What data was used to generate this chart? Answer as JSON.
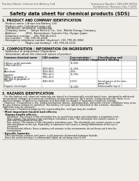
{
  "bg_color": "#f0ede8",
  "title": "Safety data sheet for chemical products (SDS)",
  "header_left": "Product Name: Lithium Ion Battery Cell",
  "header_right_line1": "Substance Number: SDS-LIBT-00010",
  "header_right_line2": "Established / Revision: Dec.7.2016",
  "section1_title": "1. PRODUCT AND COMPANY IDENTIFICATION",
  "section1_lines": [
    "- Product name: Lithium Ion Battery Cell",
    "- Product code: Cylindrical-type cell",
    "  (UR18650U, UR18650Z, UR18650A)",
    "- Company name:     Sanyo Electric Co., Ltd., Mobile Energy Company",
    "- Address:          2001, Kamionkuze, Sumoto-City, Hyogo, Japan",
    "- Telephone number:   +81-799-26-4111",
    "- Fax number:   +81-799-26-4128",
    "- Emergency telephone number (daytime): +81-799-26-3862",
    "                         (Night and holiday): +81-799-26-4131"
  ],
  "section2_title": "2. COMPOSITION / INFORMATION ON INGREDIENTS",
  "section2_sub1": "- Substance or preparation: Preparation",
  "section2_sub2": "- Information about the chemical nature of product:",
  "table_headers": [
    "Common chemical name",
    "CAS number",
    "Concentration /\nConcentration range",
    "Classification and\nhazard labeling"
  ],
  "table_rows": [
    [
      "Lithium oxide tantalate\n(LiMn(CoNiO2))",
      "",
      "30-60%",
      ""
    ],
    [
      "Iron",
      "7439-89-6",
      "15-25%",
      "-"
    ],
    [
      "Aluminum",
      "7429-90-5",
      "2-6%",
      "-"
    ],
    [
      "Graphite\n(Most is graphite-1)\n(All film is graphite-2)",
      "7782-42-5\n7782-42-5",
      "10-25%",
      "-"
    ],
    [
      "Copper",
      "7440-50-8",
      "5-15%",
      "Sensitization of the skin\ngroup No.2"
    ],
    [
      "Organic electrolyte",
      "-",
      "10-20%",
      "Inflammable liquid"
    ]
  ],
  "section3_title": "3. HAZARDS IDENTIFICATION",
  "section3_para": [
    "  For this battery cell, chemical materials are stored in a hermetically-sealed metal case, designed to withstand",
    "temperature changes and pressure-conditions during normal use. As a result, during normal use, there is no",
    "physical danger of ignition or explosion and therefore no danger of hazardous materials leakage.",
    "  However, if exposed to a fire, added mechanical shocks, decomposition, abnormal electric conditions may occur.",
    "By gas release contact be operated. The battery cell case will be breached at the extreme, hazardous",
    "materials may be released.",
    "  Moreover, if heated strongly by the surrounding fire, acid gas may be emitted."
  ],
  "section3_most": "- Most important hazard and effects:",
  "section3_human_title": "  Human health effects:",
  "section3_human_lines": [
    "    Inhalation: The release of the electrolyte has an anesthesia action and stimulates a respiratory tract.",
    "    Skin contact: The release of the electrolyte stimulates a skin. The electrolyte skin contact causes a",
    "    sore and stimulation on the skin.",
    "    Eye contact: The release of the electrolyte stimulates eyes. The electrolyte eye contact causes a sore",
    "    and stimulation on the eye. Especially, a substance that causes a strong inflammation of the eye is",
    "    contained.",
    "    Environmental effects: Since a battery cell remains in the environment, do not throw out it into the",
    "    environment."
  ],
  "section3_specific_title": "- Specific hazards:",
  "section3_specific_lines": [
    "  If the electrolyte contacts with water, it will generate detrimental hydrogen fluoride.",
    "  Since the used electrolyte is inflammable liquid, do not bring close to fire."
  ]
}
